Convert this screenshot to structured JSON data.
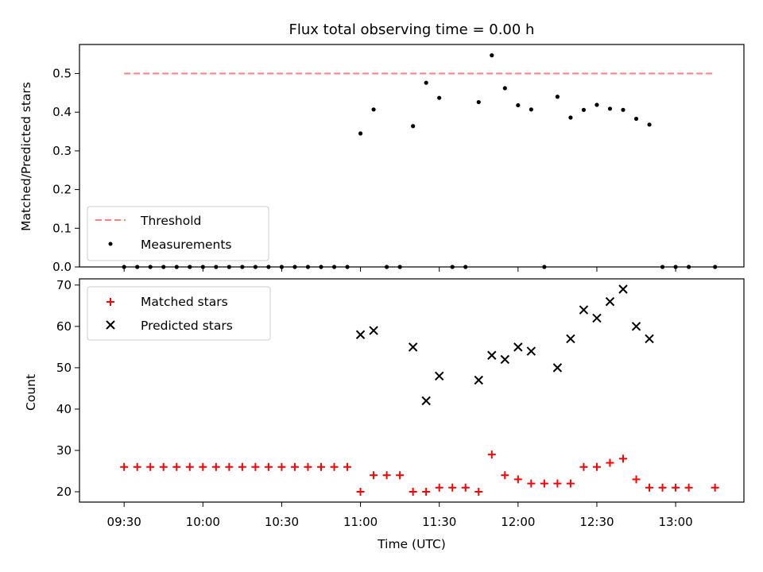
{
  "title": "Flux total observing time = 0.00 h",
  "colors": {
    "threshold": "#ff7f7f",
    "measurement": "#000000",
    "matched": "#ff0000",
    "predicted": "#000000"
  },
  "chart_data": [
    {
      "type": "scatter",
      "ylabel": "Matched/Predicted stars",
      "ylim": [
        0,
        0.575
      ],
      "yticks": [
        0.0,
        0.1,
        0.2,
        0.3,
        0.4,
        0.5
      ],
      "ytick_labels": [
        "0.0",
        "0.1",
        "0.2",
        "0.3",
        "0.4",
        "0.5"
      ],
      "legend_position": "lower-left",
      "threshold": {
        "name": "Threshold",
        "value": 0.5,
        "x_start": "09:30",
        "x_end": "13:15"
      },
      "series": [
        {
          "name": "Measurements",
          "points": [
            [
              "09:30",
              0
            ],
            [
              "09:35",
              0
            ],
            [
              "09:40",
              0
            ],
            [
              "09:45",
              0
            ],
            [
              "09:50",
              0
            ],
            [
              "09:55",
              0
            ],
            [
              "10:00",
              0
            ],
            [
              "10:05",
              0
            ],
            [
              "10:10",
              0
            ],
            [
              "10:15",
              0
            ],
            [
              "10:20",
              0
            ],
            [
              "10:25",
              0
            ],
            [
              "10:30",
              0
            ],
            [
              "10:35",
              0
            ],
            [
              "10:40",
              0
            ],
            [
              "10:45",
              0
            ],
            [
              "10:50",
              0
            ],
            [
              "10:55",
              0
            ],
            [
              "11:00",
              0.345
            ],
            [
              "11:05",
              0.407
            ],
            [
              "11:10",
              0
            ],
            [
              "11:15",
              0
            ],
            [
              "11:20",
              0.364
            ],
            [
              "11:25",
              0.476
            ],
            [
              "11:30",
              0.437
            ],
            [
              "11:35",
              0
            ],
            [
              "11:40",
              0
            ],
            [
              "11:45",
              0.426
            ],
            [
              "11:50",
              0.547
            ],
            [
              "11:55",
              0.462
            ],
            [
              "12:00",
              0.418
            ],
            [
              "12:05",
              0.407
            ],
            [
              "12:10",
              0
            ],
            [
              "12:15",
              0.44
            ],
            [
              "12:20",
              0.386
            ],
            [
              "12:25",
              0.406
            ],
            [
              "12:30",
              0.419
            ],
            [
              "12:35",
              0.409
            ],
            [
              "12:40",
              0.406
            ],
            [
              "12:45",
              0.383
            ],
            [
              "12:50",
              0.368
            ],
            [
              "12:55",
              0
            ],
            [
              "13:00",
              0
            ],
            [
              "13:05",
              0
            ],
            [
              "13:15",
              0
            ]
          ]
        }
      ]
    },
    {
      "type": "scatter",
      "xlabel": "Time (UTC)",
      "ylabel": "Count",
      "ylim": [
        17.5,
        71.5
      ],
      "yticks": [
        20,
        30,
        40,
        50,
        60,
        70
      ],
      "ytick_labels": [
        "20",
        "30",
        "40",
        "50",
        "60",
        "70"
      ],
      "xlim": [
        "09:13",
        "13:26"
      ],
      "xticks": [
        "09:30",
        "10:00",
        "10:30",
        "11:00",
        "11:30",
        "12:00",
        "12:30",
        "13:00"
      ],
      "xtick_labels": [
        "09:30",
        "10:00",
        "10:30",
        "11:00",
        "11:30",
        "12:00",
        "12:30",
        "13:00"
      ],
      "legend_position": "upper-left",
      "series": [
        {
          "name": "Matched stars",
          "points": [
            [
              "09:30",
              26
            ],
            [
              "09:35",
              26
            ],
            [
              "09:40",
              26
            ],
            [
              "09:45",
              26
            ],
            [
              "09:50",
              26
            ],
            [
              "09:55",
              26
            ],
            [
              "10:00",
              26
            ],
            [
              "10:05",
              26
            ],
            [
              "10:10",
              26
            ],
            [
              "10:15",
              26
            ],
            [
              "10:20",
              26
            ],
            [
              "10:25",
              26
            ],
            [
              "10:30",
              26
            ],
            [
              "10:35",
              26
            ],
            [
              "10:40",
              26
            ],
            [
              "10:45",
              26
            ],
            [
              "10:50",
              26
            ],
            [
              "10:55",
              26
            ],
            [
              "11:00",
              20
            ],
            [
              "11:05",
              24
            ],
            [
              "11:10",
              24
            ],
            [
              "11:15",
              24
            ],
            [
              "11:20",
              20
            ],
            [
              "11:25",
              20
            ],
            [
              "11:30",
              21
            ],
            [
              "11:35",
              21
            ],
            [
              "11:40",
              21
            ],
            [
              "11:45",
              20
            ],
            [
              "11:50",
              29
            ],
            [
              "11:55",
              24
            ],
            [
              "12:00",
              23
            ],
            [
              "12:05",
              22
            ],
            [
              "12:10",
              22
            ],
            [
              "12:15",
              22
            ],
            [
              "12:20",
              22
            ],
            [
              "12:25",
              26
            ],
            [
              "12:30",
              26
            ],
            [
              "12:35",
              27
            ],
            [
              "12:40",
              28
            ],
            [
              "12:45",
              23
            ],
            [
              "12:50",
              21
            ],
            [
              "12:55",
              21
            ],
            [
              "13:00",
              21
            ],
            [
              "13:05",
              21
            ],
            [
              "13:15",
              21
            ]
          ]
        },
        {
          "name": "Predicted stars",
          "points": [
            [
              "11:00",
              58
            ],
            [
              "11:05",
              59
            ],
            [
              "11:20",
              55
            ],
            [
              "11:25",
              42
            ],
            [
              "11:30",
              48
            ],
            [
              "11:45",
              47
            ],
            [
              "11:50",
              53
            ],
            [
              "11:55",
              52
            ],
            [
              "12:00",
              55
            ],
            [
              "12:05",
              54
            ],
            [
              "12:15",
              50
            ],
            [
              "12:20",
              57
            ],
            [
              "12:25",
              64
            ],
            [
              "12:30",
              62
            ],
            [
              "12:35",
              66
            ],
            [
              "12:40",
              69
            ],
            [
              "12:45",
              60
            ],
            [
              "12:50",
              57
            ]
          ]
        }
      ]
    }
  ]
}
